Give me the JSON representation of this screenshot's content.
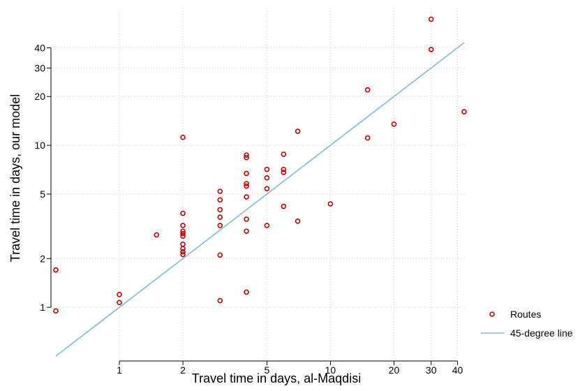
{
  "chart_data": {
    "type": "scatter",
    "title": "",
    "xlabel": "Travel time in days, al-Maqdisi",
    "ylabel": "Travel time in days, our model",
    "xscale": "log",
    "yscale": "log",
    "xlim": [
      0.5,
      44
    ],
    "ylim": [
      0.5,
      70
    ],
    "xticks": [
      1,
      2,
      5,
      10,
      20,
      30,
      40
    ],
    "yticks": [
      1,
      2,
      5,
      10,
      20,
      30,
      40
    ],
    "grid": true,
    "legend_position": "right",
    "colors": {
      "points": "#c00000",
      "line": "#7fb8dc",
      "grid": "#c8c8c8"
    },
    "series": [
      {
        "name": "Routes",
        "kind": "scatter",
        "points": [
          [
            0.5,
            1.7
          ],
          [
            0.5,
            0.95
          ],
          [
            1,
            1.2
          ],
          [
            1,
            1.07
          ],
          [
            1.5,
            2.8
          ],
          [
            2,
            11.2
          ],
          [
            2,
            3.8
          ],
          [
            2,
            3.2
          ],
          [
            2,
            2.95
          ],
          [
            2,
            2.85
          ],
          [
            2,
            2.75
          ],
          [
            2,
            2.45
          ],
          [
            2,
            2.3
          ],
          [
            2,
            2.2
          ],
          [
            2,
            2.12
          ],
          [
            3,
            5.2
          ],
          [
            3,
            4.6
          ],
          [
            3,
            4.0
          ],
          [
            3,
            3.6
          ],
          [
            3,
            3.2
          ],
          [
            3,
            2.1
          ],
          [
            3,
            1.1
          ],
          [
            4,
            8.7
          ],
          [
            4,
            8.4
          ],
          [
            4,
            6.7
          ],
          [
            4,
            5.8
          ],
          [
            4,
            5.6
          ],
          [
            4,
            4.8
          ],
          [
            4,
            3.5
          ],
          [
            4,
            2.95
          ],
          [
            4,
            1.24
          ],
          [
            5,
            7.1
          ],
          [
            5,
            6.3
          ],
          [
            5,
            5.4
          ],
          [
            5,
            3.2
          ],
          [
            6,
            8.8
          ],
          [
            6,
            7.1
          ],
          [
            6,
            6.8
          ],
          [
            6,
            4.2
          ],
          [
            7,
            12.2
          ],
          [
            7,
            3.4
          ],
          [
            10,
            4.35
          ],
          [
            15,
            22
          ],
          [
            15,
            11.1
          ],
          [
            20,
            13.5
          ],
          [
            30,
            60
          ],
          [
            30,
            39
          ],
          [
            43,
            16.1
          ]
        ]
      },
      {
        "name": "45-degree line",
        "kind": "line",
        "points": [
          [
            0.5,
            0.5
          ],
          [
            43,
            43
          ]
        ]
      }
    ]
  }
}
